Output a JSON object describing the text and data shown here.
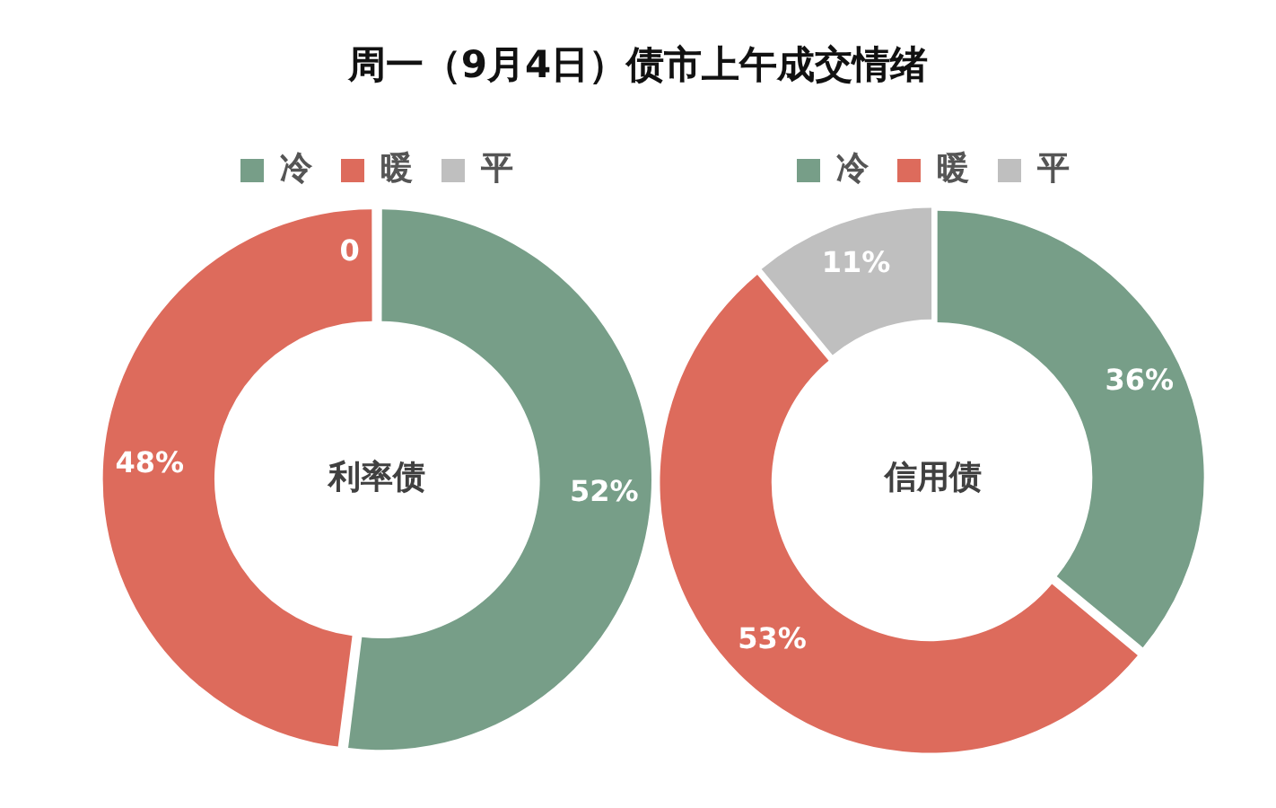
{
  "chart_data": [
    {
      "type": "donut",
      "title": "周一（9月4日）债市上午成交情绪",
      "categories": [
        "冷",
        "暖",
        "平"
      ],
      "values": [
        52,
        48,
        0
      ],
      "colors": [
        "#779e88",
        "#dd6b5c",
        "#bfbfbf"
      ],
      "value_labels": [
        "52%",
        "48%",
        "0"
      ],
      "annotations": [
        "利率债"
      ],
      "legend": "top"
    },
    {
      "type": "donut",
      "categories": [
        "冷",
        "暖",
        "平"
      ],
      "values": [
        36,
        53,
        11
      ],
      "colors": [
        "#779e88",
        "#dd6b5c",
        "#bfbfbf"
      ],
      "value_labels": [
        "36%",
        "53%",
        "11%"
      ],
      "annotations": [
        "信用债"
      ],
      "legend": "top"
    }
  ]
}
